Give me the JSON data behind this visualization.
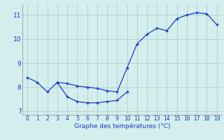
{
  "title": "Graphe des températures (°C)",
  "line1_x": [
    0,
    1,
    2,
    3,
    4,
    5,
    6,
    7,
    8,
    9,
    10,
    11,
    12,
    13,
    14,
    15,
    16,
    17,
    18,
    19
  ],
  "line1_y": [
    8.4,
    8.2,
    7.8,
    8.2,
    8.15,
    8.05,
    8.0,
    7.95,
    7.85,
    7.8,
    8.8,
    9.8,
    10.2,
    10.45,
    10.35,
    10.85,
    11.0,
    11.1,
    11.05,
    10.6
  ],
  "line2_x": [
    3,
    4,
    5,
    6,
    7,
    8,
    9,
    10
  ],
  "line2_y": [
    8.2,
    7.6,
    7.4,
    7.35,
    7.35,
    7.4,
    7.45,
    7.8
  ],
  "line_color": "#1b39c8",
  "bg_color": "#d4eeed",
  "grid_color": "#aed4d0",
  "xlim": [
    -0.5,
    19.5
  ],
  "ylim": [
    6.85,
    11.45
  ],
  "xticks": [
    0,
    1,
    2,
    3,
    4,
    5,
    6,
    7,
    8,
    9,
    10,
    11,
    12,
    13,
    14,
    15,
    16,
    17,
    18,
    19
  ],
  "yticks": [
    7,
    8,
    9,
    10,
    11
  ],
  "marker": "+",
  "markersize": 3.5,
  "linewidth": 0.9,
  "tick_fontsize": 5.5,
  "label_fontsize": 6.5
}
